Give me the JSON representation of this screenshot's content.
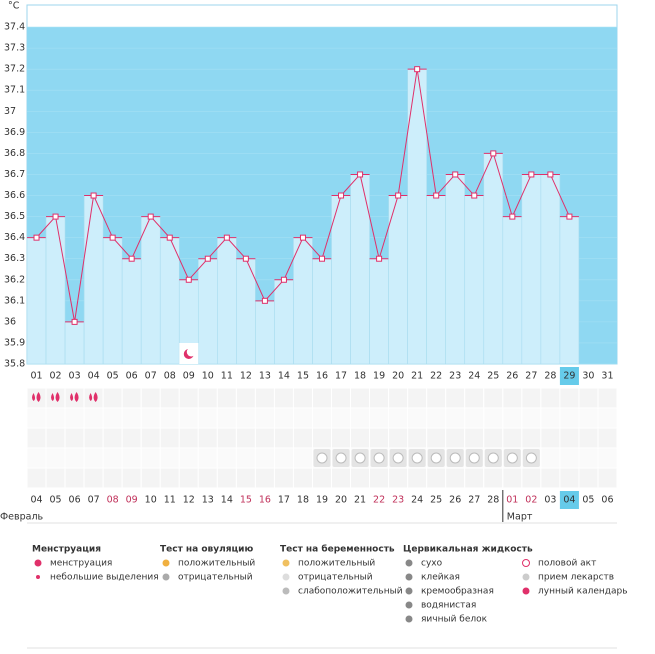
{
  "chart_data": {
    "type": "line",
    "y_label": "°C",
    "categories": [
      "01",
      "02",
      "03",
      "04",
      "05",
      "06",
      "07",
      "08",
      "09",
      "10",
      "11",
      "12",
      "13",
      "14",
      "15",
      "16",
      "17",
      "18",
      "19",
      "20",
      "21",
      "22",
      "23",
      "24",
      "25",
      "26",
      "27",
      "28",
      "29",
      "30",
      "31"
    ],
    "values": [
      36.4,
      36.5,
      36.0,
      36.6,
      36.4,
      36.3,
      36.5,
      36.4,
      36.2,
      36.3,
      36.4,
      36.3,
      36.1,
      36.2,
      36.4,
      36.3,
      36.6,
      36.7,
      36.3,
      36.6,
      37.2,
      36.6,
      36.7,
      36.6,
      36.8,
      36.5,
      36.7,
      36.7,
      36.5,
      null,
      null
    ],
    "color": "#e0306a",
    "bar_color": "#cdeefb",
    "background": "#8fd8f2",
    "ylim": [
      35.8,
      37.5
    ],
    "yticks": [
      35.8,
      35.9,
      36,
      36.1,
      36.2,
      36.3,
      36.4,
      36.5,
      36.6,
      36.7,
      36.8,
      36.9,
      37,
      37.1,
      37.2,
      37.3,
      37.4
    ]
  },
  "calendar": {
    "dates": [
      "04",
      "05",
      "06",
      "07",
      "08",
      "09",
      "10",
      "11",
      "12",
      "13",
      "14",
      "15",
      "16",
      "17",
      "18",
      "19",
      "20",
      "21",
      "22",
      "23",
      "24",
      "25",
      "26",
      "27",
      "28",
      "01",
      "02",
      "03",
      "04",
      "05",
      "06"
    ],
    "date_colors": [
      "#333",
      "#333",
      "#333",
      "#333",
      "#c0305a",
      "#c0305a",
      "#333",
      "#333",
      "#333",
      "#333",
      "#333",
      "#c0305a",
      "#c0305a",
      "#333",
      "#333",
      "#333",
      "#333",
      "#333",
      "#c0305a",
      "#c0305a",
      "#333",
      "#333",
      "#333",
      "#333",
      "#333",
      "#c0305a",
      "#c0305a",
      "#333",
      "#333",
      "#333",
      "#333"
    ],
    "months": [
      "Февраль",
      "Март"
    ]
  },
  "legend": [
    {
      "title": "Менструация",
      "items": [
        "менструация",
        "небольшие выделения"
      ]
    },
    {
      "title": "Тест на овуляцию",
      "items": [
        "положительный",
        "отрицательный"
      ]
    },
    {
      "title": "Тест на беременность",
      "items": [
        "положительный",
        "отрицательный",
        "слабоположительный"
      ]
    },
    {
      "title": "Цервикальная жидкость",
      "items": [
        "сухо",
        "клейкая",
        "кремообразная",
        "водянистая",
        "яичный белок"
      ]
    },
    {
      "items": [
        "половой акт",
        "прием лекарств",
        "лунный календарь"
      ]
    }
  ]
}
